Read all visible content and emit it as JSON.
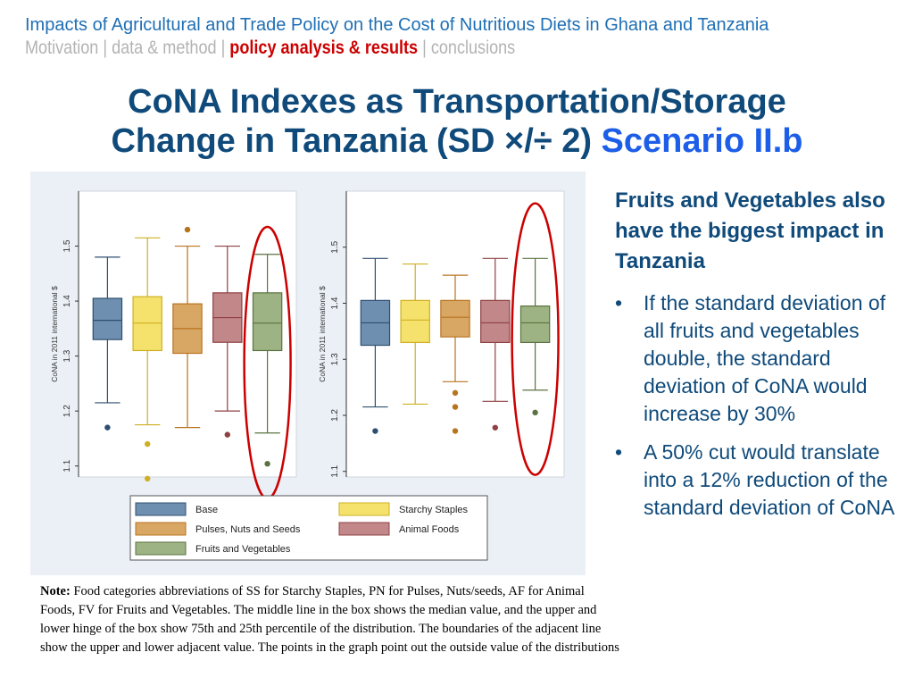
{
  "header": {
    "title": "Impacts of Agricultural and Trade Policy on the Cost of Nutritious Diets in Ghana and Tanzania",
    "nav": [
      "Motivation",
      "data & method",
      "policy analysis & results",
      "conclusions"
    ],
    "nav_active": 2,
    "nav_sep": "|"
  },
  "slide": {
    "title_line1": "CoNA Indexes as Transportation/Storage",
    "title_line2": "Change in Tanzania (SD ×/÷ 2)",
    "title_accent": "Scenario II.b"
  },
  "side": {
    "heading": "Fruits and Vegetables also have the biggest impact in Tanzania",
    "bullet_char": "•",
    "bullets": [
      "If the standard deviation of all fruits and vegetables double, the standard deviation of CoNA would increase by 30%",
      "A 50% cut would translate into a 12% reduction of the standard deviation of CoNA"
    ]
  },
  "note": {
    "label": "Note:",
    "text": "Food categories abbreviations of SS for Starchy Staples, PN for Pulses, Nuts/seeds, AF for Animal Foods, FV for Fruits and Vegetables. The middle line in the box shows the median value, and the upper and lower hinge of the box show 75th and 25th percentile of the distribution. The boundaries of the adjacent line show the upper and lower adjacent value. The points in the graph point out the outside value of the distributions"
  },
  "colors": {
    "highlight_circle": "#cc0000"
  },
  "chart_data": [
    {
      "type": "box",
      "ylabel": "CoNA in 2011 international $",
      "ylim": [
        1.08,
        1.6
      ],
      "yticks": [
        1.1,
        1.2,
        1.3,
        1.4,
        1.5
      ],
      "highlight": "Fruits and Vegetables",
      "series": [
        {
          "name": "Base",
          "fill": "#6f8fb0",
          "stroke": "#2f4f70",
          "whisker_low": 1.215,
          "q1": 1.33,
          "median": 1.365,
          "q3": 1.405,
          "whisker_high": 1.48,
          "outliers": [
            1.17
          ]
        },
        {
          "name": "Starchy Staples",
          "fill": "#f5e26c",
          "stroke": "#cfb022",
          "whisker_low": 1.175,
          "q1": 1.31,
          "median": 1.36,
          "q3": 1.408,
          "whisker_high": 1.515,
          "outliers": [
            1.14,
            1.077
          ]
        },
        {
          "name": "Pulses, Nuts and Seeds",
          "fill": "#d9a764",
          "stroke": "#b8731f",
          "whisker_low": 1.17,
          "q1": 1.305,
          "median": 1.35,
          "q3": 1.395,
          "whisker_high": 1.5,
          "outliers": [
            1.53
          ]
        },
        {
          "name": "Animal Foods",
          "fill": "#c18789",
          "stroke": "#8f4043",
          "whisker_low": 1.2,
          "q1": 1.325,
          "median": 1.37,
          "q3": 1.415,
          "whisker_high": 1.5,
          "outliers": [
            1.157
          ]
        },
        {
          "name": "Fruits and Vegetables",
          "fill": "#9db383",
          "stroke": "#5a7340",
          "whisker_low": 1.16,
          "q1": 1.31,
          "median": 1.36,
          "q3": 1.415,
          "whisker_high": 1.485,
          "outliers": [
            1.104
          ]
        }
      ]
    },
    {
      "type": "box",
      "ylabel": "CoNA in 2011 international $",
      "ylim": [
        1.09,
        1.6
      ],
      "yticks": [
        1.1,
        1.2,
        1.3,
        1.4,
        1.5
      ],
      "highlight": "Fruits and Vegetables",
      "series": [
        {
          "name": "Base",
          "fill": "#6f8fb0",
          "stroke": "#2f4f70",
          "whisker_low": 1.215,
          "q1": 1.325,
          "median": 1.365,
          "q3": 1.405,
          "whisker_high": 1.48,
          "outliers": [
            1.172
          ]
        },
        {
          "name": "Starchy Staples",
          "fill": "#f5e26c",
          "stroke": "#cfb022",
          "whisker_low": 1.22,
          "q1": 1.33,
          "median": 1.37,
          "q3": 1.405,
          "whisker_high": 1.47,
          "outliers": []
        },
        {
          "name": "Pulses, Nuts and Seeds",
          "fill": "#d9a764",
          "stroke": "#b8731f",
          "whisker_low": 1.26,
          "q1": 1.34,
          "median": 1.375,
          "q3": 1.405,
          "whisker_high": 1.45,
          "outliers": [
            1.24,
            1.215,
            1.172
          ]
        },
        {
          "name": "Animal Foods",
          "fill": "#c18789",
          "stroke": "#8f4043",
          "whisker_low": 1.225,
          "q1": 1.33,
          "median": 1.365,
          "q3": 1.405,
          "whisker_high": 1.48,
          "outliers": [
            1.178
          ]
        },
        {
          "name": "Fruits and Vegetables",
          "fill": "#9db383",
          "stroke": "#5a7340",
          "whisker_low": 1.245,
          "q1": 1.33,
          "median": 1.365,
          "q3": 1.395,
          "whisker_high": 1.48,
          "outliers": [
            1.205
          ]
        }
      ]
    }
  ]
}
